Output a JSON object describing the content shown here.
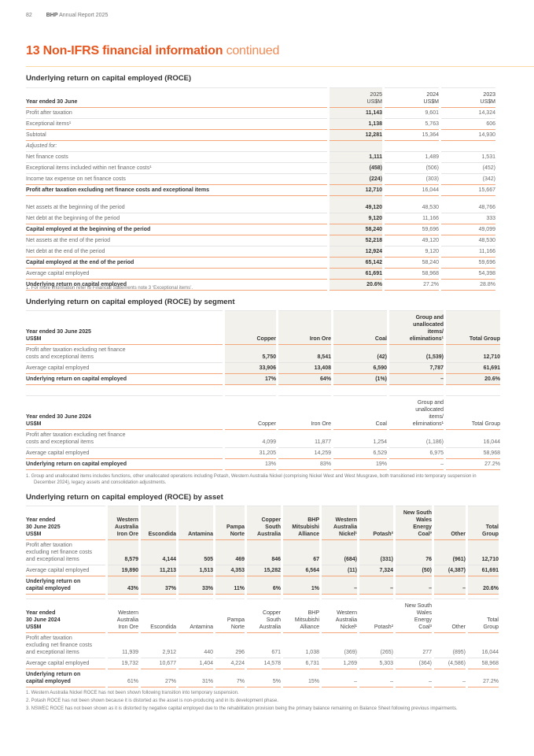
{
  "header": {
    "page_number": "82",
    "publication_brand": "BHP",
    "publication_title": "Annual Report 2025"
  },
  "title": {
    "main": "13 Non-IFRS financial information",
    "suffix": "continued"
  },
  "roce": {
    "heading": "Underlying return on capital employed (ROCE)",
    "columns": [
      "Year ended 30 June",
      "2025\nUS$M",
      "2024\nUS$M",
      "2023\nUS$M"
    ],
    "rows": [
      {
        "label": "Profit after taxation",
        "values": [
          "11,143",
          "9,601",
          "14,324"
        ]
      },
      {
        "label": "Exceptional items¹",
        "values": [
          "1,138",
          "5,763",
          "606"
        ]
      },
      {
        "label": "Subtotal",
        "values": [
          "12,281",
          "15,364",
          "14,930"
        ]
      },
      {
        "label": "Adjusted for:",
        "values": [
          "",
          "",
          ""
        ]
      },
      {
        "label": "Net finance costs",
        "values": [
          "1,111",
          "1,489",
          "1,531"
        ]
      },
      {
        "label": "Exceptional items included within net finance costs¹",
        "values": [
          "(458)",
          "(506)",
          "(452)"
        ]
      },
      {
        "label": "Income tax expense on net finance costs",
        "values": [
          "(224)",
          "(303)",
          "(342)"
        ]
      },
      {
        "label": "Profit after taxation excluding net finance costs and exceptional items",
        "values": [
          "12,710",
          "16,044",
          "15,667"
        ]
      },
      {
        "label": "Net assets at the beginning of the period",
        "values": [
          "49,120",
          "48,530",
          "48,766"
        ]
      },
      {
        "label": "Net debt at the beginning of the period",
        "values": [
          "9,120",
          "11,166",
          "333"
        ]
      },
      {
        "label": "Capital employed at the beginning of the period",
        "values": [
          "58,240",
          "59,696",
          "49,099"
        ]
      },
      {
        "label": "Net assets at the end of the period",
        "values": [
          "52,218",
          "49,120",
          "48,530"
        ]
      },
      {
        "label": "Net debt at the end of the period",
        "values": [
          "12,924",
          "9,120",
          "11,166"
        ]
      },
      {
        "label": "Capital employed at the end of the period",
        "values": [
          "65,142",
          "58,240",
          "59,696"
        ]
      },
      {
        "label": "Average capital employed",
        "values": [
          "61,691",
          "58,968",
          "54,398"
        ]
      },
      {
        "label": "Underlying return on capital employed",
        "values": [
          "20.6%",
          "27.2%",
          "28.8%"
        ]
      }
    ],
    "footnotes": [
      "1.  For more information refer to Financial Statements note 3 ‘Exceptional items’."
    ]
  },
  "segment": {
    "heading": "Underlying return on capital employed (ROCE) by segment",
    "tables": [
      {
        "columns": [
          "Year ended 30 June 2025\nUS$M",
          "Copper",
          "Iron Ore",
          "Coal",
          "Group and\nunallocated\nitems/\neliminations¹",
          "Total Group"
        ],
        "rows": [
          {
            "label": "Profit after taxation excluding net finance\ncosts and exceptional items",
            "values": [
              "5,750",
              "8,541",
              "(42)",
              "(1,539)",
              "12,710"
            ]
          },
          {
            "label": "Average capital employed",
            "values": [
              "33,906",
              "13,408",
              "6,590",
              "7,787",
              "61,691"
            ]
          },
          {
            "label": "Underlying return on capital employed",
            "values": [
              "17%",
              "64%",
              "(1%)",
              "–",
              "20.6%"
            ]
          }
        ]
      },
      {
        "columns": [
          "Year ended 30 June 2024\nUS$M",
          "Copper",
          "Iron Ore",
          "Coal",
          "Group and\nunallocated\nitems/\neliminations¹",
          "Total Group"
        ],
        "rows": [
          {
            "label": "Profit after taxation excluding net finance\ncosts and exceptional items",
            "values": [
              "4,099",
              "11,877",
              "1,254",
              "(1,186)",
              "16,044"
            ]
          },
          {
            "label": "Average capital employed",
            "values": [
              "31,205",
              "14,259",
              "6,529",
              "6,975",
              "58,968"
            ]
          },
          {
            "label": "Underlying return on capital employed",
            "values": [
              "13%",
              "83%",
              "19%",
              "–",
              "27.2%"
            ]
          }
        ]
      }
    ],
    "footnotes": [
      "1.  Group and unallocated items includes functions, other unallocated operations including Potash, Western Australia Nickel (comprising Nickel West and West Musgrave, both transitioned into temporary suspension in December 2024), legacy assets and consolidation adjustments."
    ]
  },
  "asset": {
    "heading": "Underlying return on capital employed (ROCE) by asset",
    "tables": [
      {
        "columns": [
          "Year ended\n30 June 2025\nUS$M",
          "Western\nAustralia\nIron Ore",
          "Escondida",
          "Antamina",
          "Pampa\nNorte",
          "Copper\nSouth\nAustralia",
          "BHP\nMitsubishi\nAlliance",
          "Western\nAustralia\nNickel¹",
          "Potash²",
          "New South\nWales\nEnergy\nCoal³",
          "Other",
          "Total\nGroup"
        ],
        "rows": [
          {
            "label": "Profit after taxation\nexcluding net finance costs\nand exceptional items",
            "values": [
              "8,579",
              "4,144",
              "505",
              "469",
              "846",
              "67",
              "(684)",
              "(331)",
              "76",
              "(961)",
              "12,710"
            ]
          },
          {
            "label": "Average capital employed",
            "values": [
              "19,890",
              "11,213",
              "1,513",
              "4,353",
              "15,282",
              "6,564",
              "(11)",
              "7,324",
              "(50)",
              "(4,387)",
              "61,691"
            ]
          },
          {
            "label": "Underlying return on\ncapital employed",
            "values": [
              "43%",
              "37%",
              "33%",
              "11%",
              "6%",
              "1%",
              "–",
              "–",
              "–",
              "–",
              "20.6%"
            ]
          }
        ]
      },
      {
        "columns": [
          "Year ended\n30 June 2024\nUS$M",
          "Western\nAustralia\nIron Ore",
          "Escondida",
          "Antamina",
          "Pampa\nNorte",
          "Copper\nSouth\nAustralia",
          "BHP\nMitsubishi\nAlliance",
          "Western\nAustralia\nNickel¹",
          "Potash²",
          "New South\nWales\nEnergy\nCoal³",
          "Other",
          "Total\nGroup"
        ],
        "rows": [
          {
            "label": "Profit after taxation\nexcluding net finance costs\nand exceptional items",
            "values": [
              "11,939",
              "2,912",
              "440",
              "296",
              "671",
              "1,038",
              "(369)",
              "(265)",
              "277",
              "(895)",
              "16,044"
            ]
          },
          {
            "label": "Average capital employed",
            "values": [
              "19,732",
              "10,677",
              "1,404",
              "4,224",
              "14,578",
              "6,731",
              "1,269",
              "5,303",
              "(364)",
              "(4,586)",
              "58,968"
            ]
          },
          {
            "label": "Underlying return on\ncapital employed",
            "values": [
              "61%",
              "27%",
              "31%",
              "7%",
              "5%",
              "15%",
              "–",
              "–",
              "–",
              "–",
              "27.2%"
            ]
          }
        ]
      }
    ],
    "footnotes": [
      "1.  Western Australia Nickel ROCE has not been shown following transition into temporary suspension.",
      "2.  Potash ROCE has not been shown because it is distorted as the asset is non-producing and in its development phase.",
      "3.  NSWEC ROCE has not been shown as it is distorted by negative capital employed due to the rehabilitation provision being the primary balance remaining on Balance Sheet following previous impairments."
    ]
  }
}
